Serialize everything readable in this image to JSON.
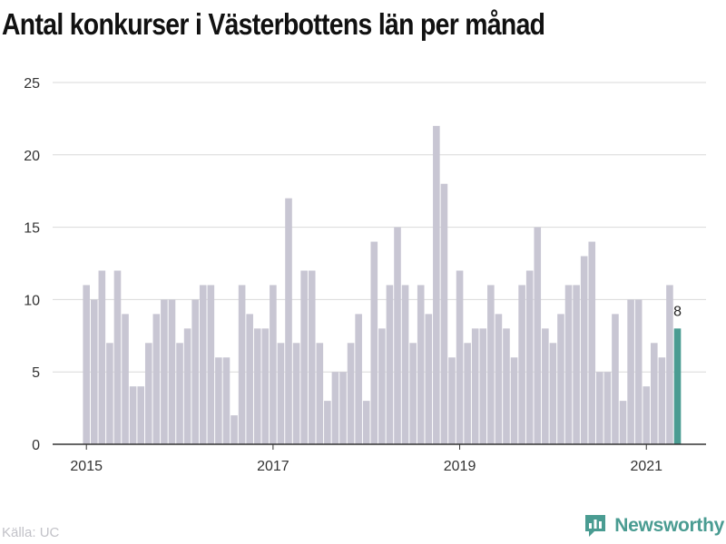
{
  "title": "Antal konkurser i Västerbottens län per månad",
  "source": "Källa: UC",
  "brand": {
    "name": "Newsworthy",
    "icon": "newsworthy-logo-icon",
    "color": "#4a9c92"
  },
  "colors": {
    "bar": "#c8c6d3",
    "highlight": "#4a9c92",
    "grid": "#d9d9d9",
    "axis": "#333333"
  },
  "chart_data": {
    "type": "bar",
    "title": "Antal konkurser i Västerbottens län per månad",
    "xlabel": "",
    "ylabel": "",
    "start": "2015-01",
    "x_ticks": [
      "2015",
      "2017",
      "2019",
      "2021"
    ],
    "yticks": [
      0,
      5,
      10,
      15,
      20,
      25
    ],
    "ylim": [
      0,
      25
    ],
    "grid": true,
    "highlight_last": true,
    "highlight_label": "8",
    "values": [
      11,
      10,
      12,
      7,
      12,
      9,
      4,
      4,
      7,
      9,
      10,
      10,
      7,
      8,
      10,
      11,
      11,
      6,
      6,
      2,
      11,
      9,
      8,
      8,
      11,
      7,
      17,
      7,
      12,
      12,
      7,
      3,
      5,
      5,
      7,
      9,
      3,
      14,
      8,
      11,
      15,
      11,
      7,
      11,
      9,
      22,
      18,
      6,
      12,
      7,
      8,
      8,
      11,
      9,
      8,
      6,
      11,
      12,
      15,
      8,
      7,
      9,
      11,
      11,
      13,
      14,
      5,
      5,
      9,
      3,
      10,
      10,
      4,
      7,
      6,
      11,
      8
    ]
  }
}
